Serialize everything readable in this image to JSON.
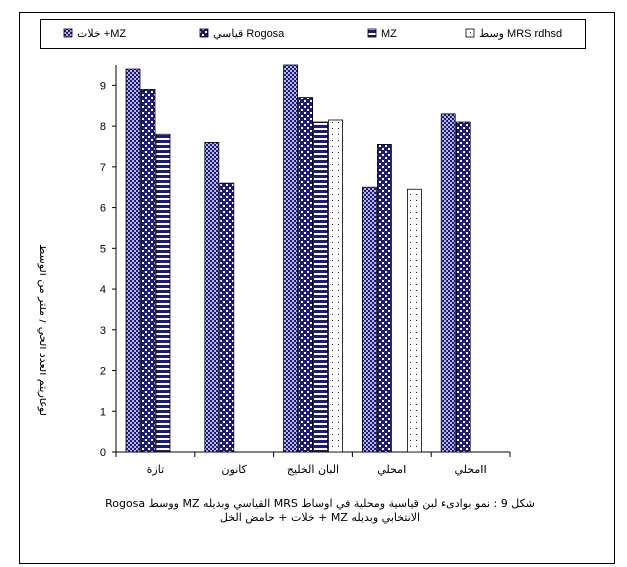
{
  "chart_data": {
    "type": "bar",
    "title": "",
    "xlabel": "",
    "ylabel": "لوغاريتم العدد الحي / ملتر من الوسط",
    "ylim": [
      0,
      9.5
    ],
    "yticks": [
      0,
      1,
      2,
      3,
      4,
      5,
      6,
      7,
      8,
      9
    ],
    "grid": false,
    "legend_position": "top",
    "categories": [
      "تازة",
      "كانون",
      "البان الخليج",
      "محليI",
      "محليII"
    ],
    "series": [
      {
        "name": "خلات +MZ",
        "pattern": "checker-navy",
        "values": [
          9.4,
          7.6,
          9.5,
          6.5,
          8.3
        ]
      },
      {
        "name": "قياسي Rogosa",
        "pattern": "dots-navy",
        "values": [
          8.9,
          6.6,
          8.7,
          7.55,
          8.1
        ]
      },
      {
        "name": "MZ",
        "pattern": "horizontal-stripes-navy",
        "values": [
          7.8,
          null,
          8.1,
          null,
          null
        ]
      },
      {
        "name": "وسط MRS rdhsd",
        "pattern": "white-dots",
        "values": [
          null,
          null,
          8.15,
          6.45,
          null
        ]
      }
    ]
  },
  "caption": {
    "line1": "شكل 9 : نمو بوادىء لبن قياسية ومحلية في اوساط MRS القياسي وبديله MZ   ووسط Rogosa",
    "line2": "الانتخابي وبديله MZ + خلات + حامض الخل"
  },
  "colors": {
    "navy": "#1a1a80",
    "dots": "#1a1a80",
    "axis": "#000000"
  }
}
